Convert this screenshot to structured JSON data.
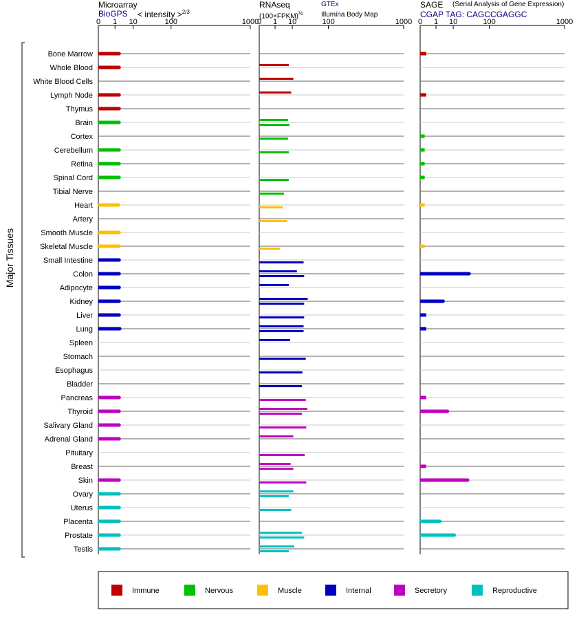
{
  "y_group_label": "Major Tissues",
  "panels": {
    "microarray": {
      "title": "Microarray",
      "source": "BioGPS",
      "scale_label": "< intensity >",
      "scale_exp": "2/3"
    },
    "rnaseq": {
      "title": "RNAseq",
      "unit": "(100×FPKM)",
      "unit_exp": "½",
      "source_a": "GTEx",
      "source_b": "Illumina Body Map"
    },
    "sage": {
      "title": "SAGE",
      "subtitle": "(Serial Analysis of Gene Expression)",
      "tag_line": "CGAP TAG: CAGCCGAGGC"
    }
  },
  "colors": {
    "Immune": "#c00000",
    "Nervous": "#00c000",
    "Muscle": "#ffc000",
    "Internal": "#0000c0",
    "Secretory": "#c000c0",
    "Reproductive": "#00c0c0",
    "source_link": "#000080",
    "axis": "#000000",
    "row_line": "#666666",
    "row_line_alt": "#c8c8c8"
  },
  "legend": [
    {
      "label": "Immune",
      "color": "#c00000"
    },
    {
      "label": "Nervous",
      "color": "#00c000"
    },
    {
      "label": "Muscle",
      "color": "#ffc000"
    },
    {
      "label": "Internal",
      "color": "#0000c0"
    },
    {
      "label": "Secretory",
      "color": "#c000c0"
    },
    {
      "label": "Reproductive",
      "color": "#00c0c0"
    }
  ],
  "chart_data": {
    "type": "bar",
    "orientation": "horizontal",
    "x_scale": "power (tick labels 0, 1, 10, 100, 1000)",
    "x_ticks": [
      0,
      1,
      10,
      100,
      1000
    ],
    "xlim": [
      0,
      1000
    ],
    "categories": [
      "Bone Marrow",
      "Whole Blood",
      "White Blood Cells",
      "Lymph Node",
      "Thymus",
      "Brain",
      "Cortex",
      "Cerebellum",
      "Retina",
      "Spinal Cord",
      "Tibial Nerve",
      "Heart",
      "Artery",
      "Smooth Muscle",
      "Skeletal Muscle",
      "Small Intestine",
      "Colon",
      "Adipocyte",
      "Kidney",
      "Liver",
      "Lung",
      "Spleen",
      "Stomach",
      "Esophagus",
      "Bladder",
      "Pancreas",
      "Thyroid",
      "Salivary Gland",
      "Adrenal Gland",
      "Pituitary",
      "Breast",
      "Skin",
      "Ovary",
      "Uterus",
      "Placenta",
      "Prostate",
      "Testis"
    ],
    "groups": [
      "Immune",
      "Immune",
      "Immune",
      "Immune",
      "Immune",
      "Nervous",
      "Nervous",
      "Nervous",
      "Nervous",
      "Nervous",
      "Nervous",
      "Muscle",
      "Muscle",
      "Muscle",
      "Muscle",
      "Internal",
      "Internal",
      "Internal",
      "Internal",
      "Internal",
      "Internal",
      "Internal",
      "Internal",
      "Internal",
      "Internal",
      "Secretory",
      "Secretory",
      "Secretory",
      "Secretory",
      "Secretory",
      "Secretory",
      "Secretory",
      "Reproductive",
      "Reproductive",
      "Reproductive",
      "Reproductive",
      "Reproductive"
    ],
    "series": [
      {
        "name": "BioGPS",
        "values": [
          2.0,
          2.0,
          null,
          2.0,
          2.0,
          2.0,
          null,
          2.0,
          2.0,
          2.0,
          null,
          1.8,
          null,
          2.0,
          2.0,
          2.0,
          2.0,
          2.0,
          2.0,
          2.0,
          2.2,
          null,
          null,
          null,
          null,
          2.0,
          2.0,
          2.0,
          2.0,
          null,
          null,
          2.0,
          2.0,
          2.0,
          2.0,
          2.0,
          2.0
        ]
      },
      {
        "name": "GTEx",
        "values": [
          null,
          7,
          11,
          9,
          null,
          6.5,
          null,
          null,
          null,
          null,
          null,
          null,
          null,
          null,
          null,
          null,
          15,
          7,
          33,
          null,
          25,
          8,
          null,
          null,
          null,
          null,
          32,
          null,
          11,
          null,
          8.5,
          null,
          11,
          null,
          null,
          22,
          12
        ]
      },
      {
        "name": "Illumina Body Map",
        "values": [
          null,
          null,
          null,
          null,
          null,
          7.5,
          6.5,
          7,
          null,
          7,
          4,
          3.5,
          6,
          null,
          2.3,
          25,
          26,
          null,
          26,
          26,
          25,
          null,
          29,
          23,
          22,
          29,
          22,
          30,
          null,
          27,
          11,
          30,
          7,
          9,
          null,
          26,
          7
        ]
      },
      {
        "name": "SAGE",
        "values": [
          0.05,
          null,
          null,
          0.05,
          null,
          null,
          0.02,
          0.02,
          0.02,
          0.02,
          null,
          0.02,
          null,
          null,
          0.02,
          null,
          34,
          null,
          3.2,
          0.05,
          0.05,
          null,
          null,
          null,
          null,
          0.05,
          5.5,
          null,
          null,
          null,
          0.05,
          31,
          null,
          null,
          2.0,
          11,
          null
        ]
      }
    ]
  }
}
